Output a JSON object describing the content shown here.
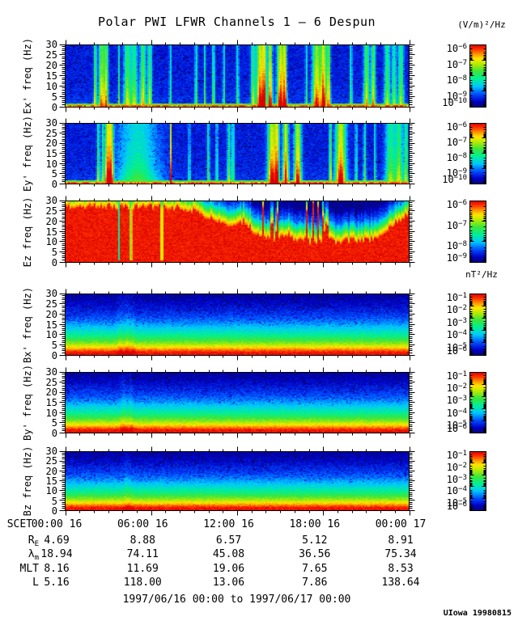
{
  "title": "Polar PWI LFWR Channels 1 — 6 Despun",
  "xaxis": {
    "label": "SCET",
    "ticks": [
      "00:00 16",
      "06:00 16",
      "12:00 16",
      "18:00 16",
      "00:00 17"
    ],
    "tick_hours": [
      0,
      6,
      12,
      18,
      24
    ]
  },
  "ephemeris": {
    "rows": [
      {
        "base": "R",
        "sub": "E",
        "values": [
          "4.69",
          "8.88",
          "6.57",
          "5.12",
          "8.91"
        ]
      },
      {
        "base": "λ",
        "sub": "m",
        "values": [
          "18.94",
          "74.11",
          "45.08",
          "36.56",
          "75.34"
        ]
      },
      {
        "base": "MLT",
        "sub": "",
        "values": [
          "8.16",
          "11.69",
          "19.06",
          "7.65",
          "8.53"
        ]
      },
      {
        "base": "L",
        "sub": "",
        "values": [
          "5.16",
          "118.00",
          "13.06",
          "7.86",
          "138.64"
        ]
      }
    ]
  },
  "footer": {
    "range_text": "1997/06/16 00:00 to 1997/06/17 00:00",
    "credit": "UIowa 19980815"
  },
  "chart_data": [
    {
      "type": "heatmap",
      "id": "ex",
      "ylabel": "Ex' freq (Hz)",
      "ylim": [
        0,
        30
      ],
      "yticks": [
        0,
        5,
        10,
        15,
        20,
        25,
        30
      ],
      "x_range": [
        "1997/06/16 00:00",
        "1997/06/17 00:00"
      ],
      "colorbar": {
        "units": "(V/m)²/Hz",
        "exponents": [
          "−6",
          "−7",
          "−8",
          "−9",
          "−10"
        ]
      },
      "render": {
        "kind": "e",
        "streaks": [
          [
            0.086,
            0.004,
            0.7
          ],
          [
            0.105,
            0.008,
            0.8
          ],
          [
            0.118,
            0.006,
            0.75
          ],
          [
            0.155,
            0.003,
            0.5
          ],
          [
            0.18,
            0.01,
            0.65
          ],
          [
            0.2,
            0.008,
            0.6
          ],
          [
            0.225,
            0.008,
            0.7
          ],
          [
            0.245,
            0.006,
            0.65
          ],
          [
            0.304,
            0.002,
            0.95
          ],
          [
            0.38,
            0.004,
            0.5
          ],
          [
            0.405,
            0.003,
            0.5
          ],
          [
            0.43,
            0.004,
            0.55
          ],
          [
            0.46,
            0.003,
            0.5
          ],
          [
            0.5,
            0.004,
            0.45
          ],
          [
            0.545,
            0.006,
            0.6
          ],
          [
            0.565,
            0.01,
            1.0
          ],
          [
            0.578,
            0.006,
            0.95
          ],
          [
            0.595,
            0.006,
            1.0
          ],
          [
            0.625,
            0.01,
            1.0
          ],
          [
            0.638,
            0.005,
            0.9
          ],
          [
            0.7,
            0.003,
            0.5
          ],
          [
            0.73,
            0.012,
            0.9
          ],
          [
            0.75,
            0.008,
            1.0
          ],
          [
            0.765,
            0.005,
            0.85
          ],
          [
            0.83,
            0.003,
            0.6
          ],
          [
            0.875,
            0.008,
            0.7
          ],
          [
            0.895,
            0.006,
            0.75
          ],
          [
            0.935,
            0.008,
            0.6
          ],
          [
            0.955,
            0.006,
            0.55
          ],
          [
            0.975,
            0.008,
            0.6
          ]
        ]
      }
    },
    {
      "type": "heatmap",
      "id": "ey",
      "ylabel": "Ey' freq (Hz)",
      "ylim": [
        0,
        30
      ],
      "yticks": [
        0,
        5,
        10,
        15,
        20,
        25,
        30
      ],
      "x_range": [
        "1997/06/16 00:00",
        "1997/06/17 00:00"
      ],
      "colorbar": {
        "units": "(V/m)²/Hz",
        "exponents": [
          "−6",
          "−7",
          "−8",
          "−9",
          "−10"
        ]
      },
      "render": {
        "kind": "e",
        "streaks": [
          [
            0.095,
            0.004,
            0.6
          ],
          [
            0.107,
            0.003,
            0.55
          ],
          [
            0.122,
            0.008,
            0.95
          ],
          [
            0.133,
            0.006,
            0.9
          ],
          [
            0.21,
            0.06,
            0.42
          ],
          [
            0.306,
            0.002,
            0.95
          ],
          [
            0.36,
            0.003,
            0.45
          ],
          [
            0.415,
            0.004,
            0.5
          ],
          [
            0.44,
            0.003,
            0.5
          ],
          [
            0.475,
            0.005,
            0.55
          ],
          [
            0.487,
            0.004,
            0.5
          ],
          [
            0.6,
            0.012,
            1.0
          ],
          [
            0.615,
            0.006,
            0.9
          ],
          [
            0.64,
            0.008,
            1.0
          ],
          [
            0.675,
            0.01,
            0.95
          ],
          [
            0.77,
            0.003,
            0.9
          ],
          [
            0.8,
            0.015,
            1.0
          ],
          [
            0.845,
            0.003,
            0.5
          ],
          [
            0.87,
            0.004,
            0.5
          ],
          [
            0.9,
            0.003,
            0.45
          ],
          [
            0.945,
            0.015,
            0.55
          ],
          [
            0.97,
            0.01,
            0.6
          ],
          [
            0.99,
            0.006,
            0.6
          ]
        ]
      }
    },
    {
      "type": "heatmap",
      "id": "ez",
      "ylabel": "Ez freq (Hz)",
      "ylim": [
        0,
        30
      ],
      "yticks": [
        0,
        5,
        10,
        15,
        20,
        25,
        30
      ],
      "x_range": [
        "1997/06/16 00:00",
        "1997/06/17 00:00"
      ],
      "colorbar": {
        "units": "(V/m)²/Hz",
        "exponents": [
          "−6",
          "−7",
          "−8",
          "−9"
        ]
      },
      "render": {
        "kind": "ez",
        "cutoff": [
          [
            0,
            29
          ],
          [
            0.3,
            29
          ],
          [
            0.38,
            27
          ],
          [
            0.44,
            22
          ],
          [
            0.48,
            19
          ],
          [
            0.52,
            22
          ],
          [
            0.56,
            15
          ],
          [
            0.6,
            13
          ],
          [
            0.64,
            16
          ],
          [
            0.68,
            13
          ],
          [
            0.72,
            12
          ],
          [
            0.76,
            13
          ],
          [
            0.8,
            12
          ],
          [
            0.84,
            13
          ],
          [
            0.88,
            13
          ],
          [
            0.92,
            15
          ],
          [
            0.96,
            21
          ],
          [
            1,
            26
          ]
        ],
        "spikes": [
          0.575,
          0.6,
          0.615,
          0.7,
          0.72,
          0.735,
          0.75,
          0.76
        ],
        "dips": [
          0.155,
          0.19,
          0.28
        ]
      }
    },
    {
      "type": "heatmap",
      "id": "bx",
      "ylabel": "Bx' freq (Hz)",
      "ylim": [
        0,
        30
      ],
      "yticks": [
        0,
        5,
        10,
        15,
        20,
        25,
        30
      ],
      "x_range": [
        "1997/06/16 00:00",
        "1997/06/17 00:00"
      ],
      "colorbar": {
        "units": "nT²/Hz",
        "exponents": [
          "−1",
          "−2",
          "−3",
          "−4",
          "−5",
          "−6"
        ]
      },
      "render": {
        "kind": "b",
        "streaks": [
          [
            0.16,
            0.01,
            0.07
          ],
          [
            0.18,
            0.008,
            0.09
          ],
          [
            0.195,
            0.006,
            0.07
          ]
        ]
      }
    },
    {
      "type": "heatmap",
      "id": "by",
      "ylabel": "By' freq (Hz)",
      "ylim": [
        0,
        30
      ],
      "yticks": [
        0,
        5,
        10,
        15,
        20,
        25,
        30
      ],
      "x_range": [
        "1997/06/16 00:00",
        "1997/06/17 00:00"
      ],
      "colorbar": {
        "units": "nT²/Hz",
        "exponents": [
          "−1",
          "−2",
          "−3",
          "−4",
          "−5",
          "−6"
        ]
      },
      "render": {
        "kind": "b",
        "streaks": [
          [
            0.17,
            0.01,
            0.08
          ],
          [
            0.19,
            0.007,
            0.08
          ]
        ]
      }
    },
    {
      "type": "heatmap",
      "id": "bz",
      "ylabel": "Bz freq (Hz)",
      "ylim": [
        0,
        30
      ],
      "yticks": [
        0,
        5,
        10,
        15,
        20,
        25,
        30
      ],
      "x_range": [
        "1997/06/16 00:00",
        "1997/06/17 00:00"
      ],
      "colorbar": {
        "units": "nT²/Hz",
        "exponents": [
          "−1",
          "−2",
          "−3",
          "−4",
          "−5",
          "−6"
        ]
      },
      "render": {
        "kind": "b",
        "streaks": [
          [
            0.18,
            0.012,
            0.06
          ]
        ]
      }
    }
  ]
}
